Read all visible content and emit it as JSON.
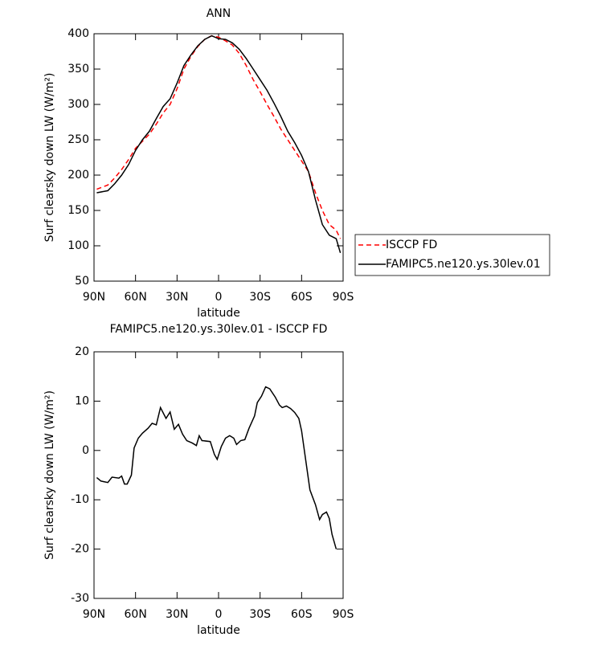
{
  "chart_data": [
    {
      "type": "line",
      "title": "ANN",
      "xlabel": "latitude",
      "ylabel": "Surf clearsky down LW (W/m²)",
      "xlim": [
        90,
        -90
      ],
      "xticks": [
        {
          "value": 90,
          "label": "90N"
        },
        {
          "value": 60,
          "label": "60N"
        },
        {
          "value": 30,
          "label": "30N"
        },
        0,
        {
          "value": -30,
          "label": "30S"
        },
        {
          "value": -60,
          "label": "60S"
        },
        {
          "value": -90,
          "label": "90S"
        }
      ],
      "ylim": [
        50,
        400
      ],
      "yticks": [
        50,
        100,
        150,
        200,
        250,
        300,
        350,
        400
      ],
      "legend": "outside-right",
      "x": [
        88,
        80,
        75,
        70,
        65,
        60,
        55,
        50,
        45,
        40,
        35,
        30,
        25,
        20,
        15,
        10,
        5,
        0,
        -5,
        -10,
        -15,
        -20,
        -25,
        -30,
        -35,
        -40,
        -45,
        -50,
        -55,
        -60,
        -65,
        -70,
        -75,
        -80,
        -85,
        -88
      ],
      "series": [
        {
          "name": "ISCCP FD",
          "color": "#ff0000",
          "style": "dashed",
          "values": [
            180,
            186,
            196,
            208,
            222,
            238,
            248,
            258,
            272,
            288,
            300,
            322,
            350,
            368,
            382,
            392,
            397,
            395,
            390,
            384,
            372,
            355,
            335,
            318,
            300,
            283,
            265,
            250,
            235,
            220,
            205,
            175,
            150,
            130,
            122,
            110
          ]
        },
        {
          "name": "FAMIPC5.ne120.ys.30lev.01",
          "color": "#000000",
          "style": "solid",
          "values": [
            175,
            178,
            188,
            200,
            215,
            235,
            250,
            262,
            280,
            297,
            308,
            330,
            355,
            370,
            383,
            392,
            397,
            393,
            392,
            387,
            378,
            365,
            350,
            335,
            320,
            302,
            283,
            262,
            246,
            228,
            205,
            165,
            130,
            115,
            110,
            90
          ]
        }
      ]
    },
    {
      "type": "line",
      "title": "FAMIPC5.ne120.ys.30lev.01 - ISCCP FD",
      "xlabel": "latitude",
      "ylabel": "Surf clearsky down LW (W/m²)",
      "xlim": [
        90,
        -90
      ],
      "xticks": [
        {
          "value": 90,
          "label": "90N"
        },
        {
          "value": 60,
          "label": "60N"
        },
        {
          "value": 30,
          "label": "30N"
        },
        0,
        {
          "value": -30,
          "label": "30S"
        },
        {
          "value": -60,
          "label": "60S"
        },
        {
          "value": -90,
          "label": "90S"
        }
      ],
      "ylim": [
        -30,
        20
      ],
      "yticks": [
        -30,
        -20,
        -10,
        0,
        10,
        20
      ],
      "x": [
        88,
        85,
        80,
        77,
        72,
        70,
        68,
        66,
        63,
        61,
        58,
        55,
        51,
        48,
        45,
        42,
        38,
        35,
        32,
        29,
        26,
        23,
        19,
        16,
        14,
        12,
        6,
        3,
        1,
        -2,
        -5,
        -8,
        -11,
        -13,
        -16,
        -19,
        -22,
        -26,
        -28,
        -31,
        -34,
        -37,
        -41,
        -44,
        -46,
        -49,
        -52,
        -55,
        -58,
        -60,
        -63,
        -66,
        -70,
        -73,
        -75,
        -78,
        -80,
        -82,
        -85
      ],
      "series": [
        {
          "color": "#000000",
          "style": "solid",
          "values": [
            -5.5,
            -6.2,
            -6.5,
            -5.4,
            -5.6,
            -5.2,
            -6.8,
            -6.8,
            -5,
            0.5,
            2.5,
            3.5,
            4.5,
            5.5,
            5.2,
            8.7,
            6.5,
            7.8,
            4.3,
            5.3,
            3.3,
            2,
            1.5,
            1,
            3,
            2,
            1.8,
            -0.8,
            -1.8,
            0.8,
            2.5,
            3,
            2.5,
            1.2,
            2,
            2.2,
            4.5,
            7,
            9.7,
            11,
            12.9,
            12.5,
            10.8,
            9.2,
            8.7,
            9,
            8.5,
            7.7,
            6.5,
            4,
            -2,
            -8,
            -11,
            -14,
            -13,
            -12.5,
            -13.8,
            -17,
            -20
          ]
        }
      ]
    }
  ]
}
